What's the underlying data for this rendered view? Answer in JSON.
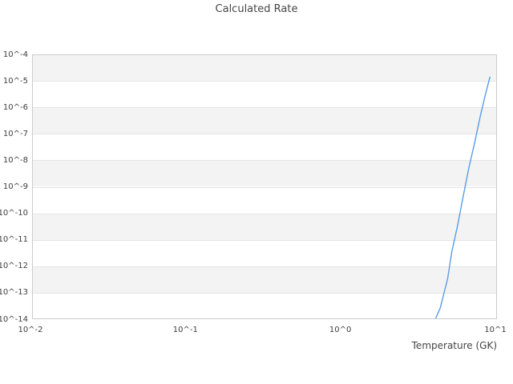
{
  "title": "Calculated Rate",
  "axes": {
    "xlabel": "Temperature (GK)",
    "x_tick_labels": [
      "10^-2",
      "10^-1",
      "10^0",
      "10^1"
    ],
    "y_tick_labels": [
      "10^-4",
      "10^-5",
      "10^-6",
      "10^-7",
      "10^-8",
      "10^-9",
      "10^-10",
      "10^-11",
      "10^-12",
      "10^-13",
      "10^-14"
    ]
  },
  "colors": {
    "line": "#5b9de4",
    "band": "#f3f3f3",
    "grid": "#e4e4e4",
    "frame": "#cccccc",
    "text": "#3d3d3d"
  },
  "chart_data": {
    "type": "line",
    "title": "Calculated Rate",
    "xlabel": "Temperature (GK)",
    "ylabel": "",
    "xscale": "log",
    "yscale": "log",
    "xlim": [
      0.01,
      10
    ],
    "ylim": [
      1e-14,
      0.0001
    ],
    "x_ticks": [
      0.01,
      0.1,
      1,
      10
    ],
    "y_ticks": [
      0.0001,
      1e-05,
      1e-06,
      1e-07,
      1e-08,
      1e-09,
      1e-10,
      1e-11,
      1e-12,
      1e-13,
      1e-14
    ],
    "grid": "horizontal decade gridlines with alternating shaded bands",
    "legend": false,
    "series": [
      {
        "name": "Calculated Rate",
        "x": [
          4.0,
          4.3,
          4.5,
          4.8,
          5.1,
          5.6,
          6.1,
          6.6,
          7.2,
          7.8,
          8.4,
          9.0
        ],
        "y": [
          1e-14,
          2.6e-14,
          7.5e-14,
          3.3e-13,
          3.3e-12,
          4e-11,
          5.5e-10,
          5.5e-09,
          5e-08,
          4.5e-07,
          2.9e-06,
          1.4e-05
        ]
      }
    ]
  }
}
